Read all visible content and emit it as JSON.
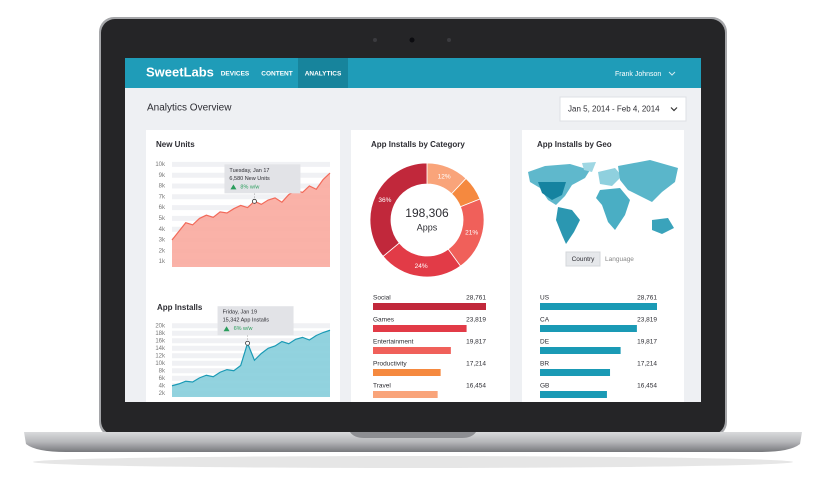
{
  "header": {
    "brand": "SweetLabs",
    "nav": [
      "DEVICES",
      "CONTENT",
      "ANALYTICS"
    ],
    "user": "Frank Johnson"
  },
  "title": "Analytics Overview",
  "date_range": "Jan 5, 2014 - Feb 4, 2014",
  "chart_data": [
    {
      "type": "area",
      "title": "New Units",
      "color": "#f26a5a",
      "values": [
        3000,
        3800,
        4600,
        4400,
        5000,
        5300,
        5100,
        5600,
        5500,
        5900,
        6200,
        6000,
        6580,
        6300,
        6700,
        6900,
        6500,
        7200,
        7600,
        7400,
        8000,
        7700,
        8600,
        9200
      ],
      "ylim": [
        500,
        10500
      ],
      "yticks": [
        {
          "value": 1000,
          "label": "1k"
        },
        {
          "value": 2000,
          "label": "2k"
        },
        {
          "value": 3000,
          "label": "3k"
        },
        {
          "value": 4000,
          "label": "4k"
        },
        {
          "value": 5000,
          "label": "5k"
        },
        {
          "value": 6000,
          "label": "6k"
        },
        {
          "value": 7000,
          "label": "7k"
        },
        {
          "value": 8000,
          "label": "8k"
        },
        {
          "value": 9000,
          "label": "9k"
        },
        {
          "value": 10000,
          "label": "10k"
        }
      ],
      "grid": true,
      "tooltip": {
        "date": "Tuesday, Jan 17",
        "text": "6,580 New Units",
        "change": "8% w/w"
      }
    },
    {
      "type": "area",
      "title": "App Installs",
      "color": "#1a9ab5",
      "values": [
        4000,
        4500,
        5200,
        5000,
        6100,
        6800,
        6400,
        7600,
        8300,
        8000,
        9400,
        15342,
        10800,
        12600,
        14000,
        14600,
        15800,
        15200,
        16400,
        16900,
        16200,
        17400,
        18200,
        18800
      ],
      "ylim": [
        1000,
        21000
      ],
      "yticks": [
        {
          "value": 2000,
          "label": "2k"
        },
        {
          "value": 4000,
          "label": "4k"
        },
        {
          "value": 6000,
          "label": "6k"
        },
        {
          "value": 8000,
          "label": "8k"
        },
        {
          "value": 10000,
          "label": "10k"
        },
        {
          "value": 12000,
          "label": "12k"
        },
        {
          "value": 14000,
          "label": "14k"
        },
        {
          "value": 16000,
          "label": "16k"
        },
        {
          "value": 18000,
          "label": "18k"
        },
        {
          "value": 20000,
          "label": "20k"
        }
      ],
      "grid": true,
      "tooltip": {
        "date": "Friday, Jan 19",
        "text": "15,342 App Installs",
        "change": "6% w/w"
      }
    },
    {
      "type": "pie",
      "title": "App Installs by Category",
      "center_value": "198,306",
      "center_label": "Apps",
      "values": [
        12,
        7,
        21,
        24,
        36
      ],
      "value_labels": [
        "12%",
        null,
        "21%",
        "24%",
        "36%"
      ],
      "colors": [
        "#f9a47a",
        "#f5893f",
        "#f0605a",
        "#e23b47",
        "#c1283b"
      ]
    },
    {
      "type": "bar",
      "categories": [
        "Social",
        "Games",
        "Entertainment",
        "Productivity",
        "Travel"
      ],
      "values": [
        28761,
        23819,
        19817,
        17214,
        16454
      ],
      "value_labels": [
        "28,761",
        "23,819",
        "19,817",
        "17,214",
        "16,454"
      ],
      "colors": [
        "#c1283b",
        "#e23b47",
        "#f0605a",
        "#f5893f",
        "#f9a47a"
      ]
    },
    {
      "type": "bar",
      "title": "App Installs by Geo",
      "tabs": [
        "Country",
        "Language"
      ],
      "categories": [
        "US",
        "CA",
        "DE",
        "BR",
        "GB"
      ],
      "values": [
        28761,
        23819,
        19817,
        17214,
        16454
      ],
      "value_labels": [
        "28,761",
        "23,819",
        "19,817",
        "17,214",
        "16,454"
      ],
      "color": "#1a9ab5"
    }
  ]
}
